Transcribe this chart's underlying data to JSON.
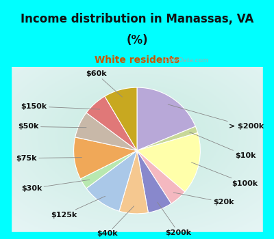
{
  "title_line1": "Income distribution in Manassas, VA",
  "title_line2": "(%)",
  "subtitle": "White residents",
  "title_color": "#111111",
  "subtitle_color": "#cc5500",
  "bg_cyan": "#00ffff",
  "labels": [
    "> $200k",
    "$10k",
    "$100k",
    "$20k",
    "$200k",
    "$40k",
    "$125k",
    "$30k",
    "$75k",
    "$50k",
    "$150k",
    "$60k"
  ],
  "values": [
    16.5,
    1.5,
    14.0,
    4.0,
    5.5,
    6.5,
    9.0,
    2.5,
    9.5,
    6.0,
    5.5,
    7.5
  ],
  "colors": [
    "#b8a8d8",
    "#c8d898",
    "#ffffaa",
    "#f4b8c0",
    "#8888cc",
    "#f5c890",
    "#aac8e8",
    "#b8e8b0",
    "#f0a858",
    "#c8b8a8",
    "#e07878",
    "#c8a820"
  ],
  "label_fontsize": 8,
  "watermark": " City-Data.com"
}
